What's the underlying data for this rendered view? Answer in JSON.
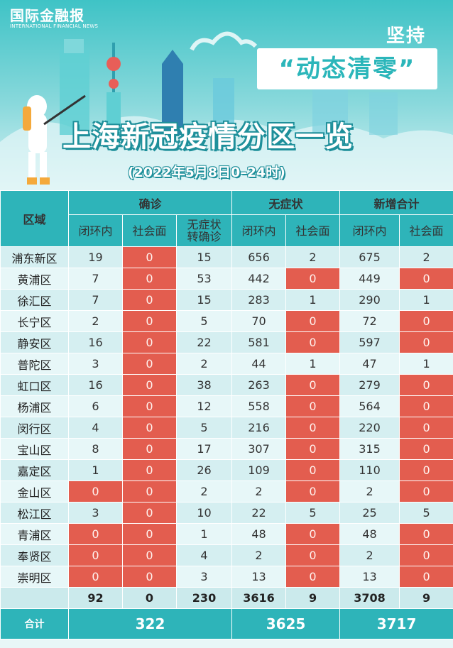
{
  "header": {
    "logo_main": "国际金融报",
    "logo_sub": "INTERNATIONAL FINANCIAL NEWS",
    "kicker": "坚持",
    "slogan": "“动态清零”",
    "title": "上海新冠疫情分区一览",
    "subtitle": "(2022年5月8日0–24时)"
  },
  "columns": {
    "area": "区域",
    "groups": [
      "确诊",
      "无症状",
      "新增合计"
    ],
    "sub": {
      "confirmed": [
        "闭环内",
        "社会面",
        "无症状转确诊"
      ],
      "asymptomatic": [
        "闭环内",
        "社会面"
      ],
      "total": [
        "闭环内",
        "社会面"
      ]
    }
  },
  "colors": {
    "teal": "#2eb4b9",
    "red": "#e35d4f",
    "light": "#d5eff1"
  },
  "rows": [
    {
      "area": "浦东新区",
      "v": [
        19,
        0,
        15,
        656,
        2,
        675,
        2
      ]
    },
    {
      "area": "黄浦区",
      "v": [
        7,
        0,
        53,
        442,
        0,
        449,
        0
      ]
    },
    {
      "area": "徐汇区",
      "v": [
        7,
        0,
        15,
        283,
        1,
        290,
        1
      ]
    },
    {
      "area": "长宁区",
      "v": [
        2,
        0,
        5,
        70,
        0,
        72,
        0
      ]
    },
    {
      "area": "静安区",
      "v": [
        16,
        0,
        22,
        581,
        0,
        597,
        0
      ]
    },
    {
      "area": "普陀区",
      "v": [
        3,
        0,
        2,
        44,
        1,
        47,
        1
      ]
    },
    {
      "area": "虹口区",
      "v": [
        16,
        0,
        38,
        263,
        0,
        279,
        0
      ]
    },
    {
      "area": "杨浦区",
      "v": [
        6,
        0,
        12,
        558,
        0,
        564,
        0
      ]
    },
    {
      "area": "闵行区",
      "v": [
        4,
        0,
        5,
        216,
        0,
        220,
        0
      ]
    },
    {
      "area": "宝山区",
      "v": [
        8,
        0,
        17,
        307,
        0,
        315,
        0
      ]
    },
    {
      "area": "嘉定区",
      "v": [
        1,
        0,
        26,
        109,
        0,
        110,
        0
      ]
    },
    {
      "area": "金山区",
      "v": [
        0,
        0,
        2,
        2,
        0,
        2,
        0
      ]
    },
    {
      "area": "松江区",
      "v": [
        3,
        0,
        10,
        22,
        5,
        25,
        5
      ]
    },
    {
      "area": "青浦区",
      "v": [
        0,
        0,
        1,
        48,
        0,
        48,
        0
      ]
    },
    {
      "area": "奉贤区",
      "v": [
        0,
        0,
        4,
        2,
        0,
        2,
        0
      ]
    },
    {
      "area": "崇明区",
      "v": [
        0,
        0,
        3,
        13,
        0,
        13,
        0
      ]
    }
  ],
  "sums": [
    92,
    0,
    230,
    3616,
    9,
    3708,
    9
  ],
  "totals": {
    "label": "合计",
    "confirmed": 322,
    "asymptomatic": 3625,
    "new_total": 3717
  }
}
